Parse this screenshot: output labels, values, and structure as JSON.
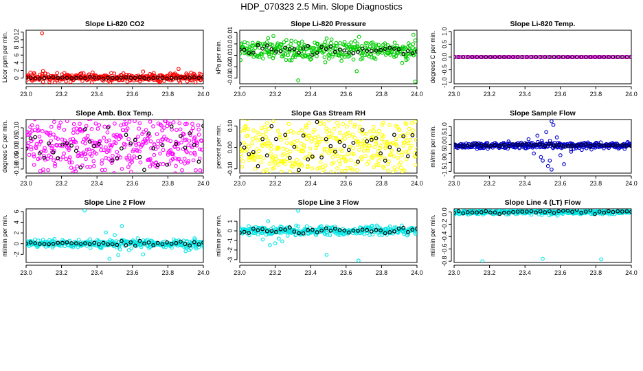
{
  "title": "HDP_070323  2.5 Min. Slope Diagnostics",
  "colors": {
    "background": "#ffffff",
    "summary_points": "#000000"
  },
  "chart_data": [
    {
      "type": "scatter",
      "title": "Slope Li-820 CO2",
      "ylabel": "Licor ppm per min.",
      "color": "#ff0000",
      "xlim": [
        23.0,
        24.0
      ],
      "ylim": [
        -1.5,
        12.5
      ],
      "xticks": [
        23.0,
        23.2,
        23.4,
        23.6,
        23.8,
        24.0
      ],
      "xtick_labels": [
        "23.0",
        "23.2",
        "23.4",
        "23.6",
        "23.8",
        "24.0"
      ],
      "yticks": [
        0,
        2,
        4,
        6,
        8,
        10,
        12
      ],
      "ytick_labels": [
        "0",
        "2",
        "4",
        "6",
        "8",
        "10",
        "12"
      ],
      "raw": {
        "center": 0.2,
        "spread": 0.55,
        "n": 350
      },
      "outliers": [
        [
          23.09,
          11.7
        ],
        [
          23.66,
          1.7
        ],
        [
          23.86,
          2.4
        ],
        [
          23.84,
          1.2
        ],
        [
          23.72,
          1.3
        ],
        [
          23.91,
          0.9
        ]
      ],
      "summary": {
        "center": 0.05,
        "spread": 0.12,
        "n": 40
      }
    },
    {
      "type": "scatter",
      "title": "Slope Li-820 Pressure",
      "ylabel": "kPa per min.",
      "color": "#00cc00",
      "xlim": [
        23.0,
        24.0
      ],
      "ylim": [
        -0.035,
        0.012
      ],
      "xticks": [
        23.0,
        23.2,
        23.4,
        23.6,
        23.8,
        24.0
      ],
      "xtick_labels": [
        "23.0",
        "23.2",
        "23.4",
        "23.6",
        "23.8",
        "24.0"
      ],
      "yticks": [
        0.01,
        0.0,
        -0.01,
        -0.02,
        -0.03
      ],
      "ytick_labels": [
        "0.01",
        "0.0",
        "-0.01",
        "-0.02",
        "-0.03"
      ],
      "raw": {
        "center": -0.0055,
        "spread": 0.004,
        "n": 350
      },
      "outliers": [
        [
          23.33,
          -0.032
        ],
        [
          23.66,
          -0.024
        ],
        [
          23.99,
          -0.033
        ],
        [
          23.98,
          0.008
        ],
        [
          23.16,
          0.005
        ],
        [
          23.19,
          0.007
        ]
      ],
      "summary": {
        "center": -0.0055,
        "spread": 0.002,
        "n": 40
      }
    },
    {
      "type": "scatter",
      "title": "Slope Li-820 Temp.",
      "ylabel": "degrees C per min.",
      "color": "#ff00ff",
      "xlim": [
        23.0,
        24.0
      ],
      "ylim": [
        -1.05,
        1.05
      ],
      "xticks": [
        23.0,
        23.2,
        23.4,
        23.6,
        23.8,
        24.0
      ],
      "xtick_labels": [
        "23.0",
        "23.2",
        "23.4",
        "23.6",
        "23.8",
        "24.0"
      ],
      "yticks": [
        1.0,
        0.5,
        0.0,
        -0.5,
        -1.0
      ],
      "ytick_labels": [
        "1.0",
        "0.5",
        "0.0",
        "-0.5",
        "-1.0"
      ],
      "raw": {
        "center": 0.0,
        "spread": 0.0,
        "n": 120
      },
      "outliers": [],
      "summary": {
        "center": 0.0,
        "spread": 0.0,
        "n": 40
      }
    },
    {
      "type": "scatter",
      "title": "Slope Amb. Box Temp.",
      "ylabel": "degrees C per min.",
      "color": "#ff00ff",
      "xlim": [
        23.0,
        24.0
      ],
      "ylim": [
        -0.12,
        0.14
      ],
      "xticks": [
        23.0,
        23.2,
        23.4,
        23.6,
        23.8,
        24.0
      ],
      "xtick_labels": [
        "23.0",
        "23.2",
        "23.4",
        "23.6",
        "23.8",
        "24.0"
      ],
      "yticks": [
        -0.1,
        -0.05,
        0.0,
        0.05,
        0.1
      ],
      "ytick_labels": [
        "-0.10",
        "-0.05",
        "0.00",
        "0.05",
        "0.10"
      ],
      "raw": {
        "center": 0.01,
        "spread": 0.085,
        "n": 420
      },
      "outliers": [
        [
          23.08,
          -0.11
        ],
        [
          23.7,
          0.13
        ]
      ],
      "summary": {
        "center": 0.01,
        "spread": 0.07,
        "n": 40
      }
    },
    {
      "type": "scatter",
      "title": "Slope Gas Stream RH",
      "ylabel": "percent per min.",
      "color": "#ffff00",
      "xlim": [
        23.0,
        24.0
      ],
      "ylim": [
        -0.12,
        0.13
      ],
      "xticks": [
        23.0,
        23.2,
        23.4,
        23.6,
        23.8,
        24.0
      ],
      "xtick_labels": [
        "23.0",
        "23.2",
        "23.4",
        "23.6",
        "23.8",
        "24.0"
      ],
      "yticks": [
        -0.1,
        0.0,
        0.1
      ],
      "ytick_labels": [
        "-0.10",
        "0.00",
        "0.10"
      ],
      "raw": {
        "center": 0.0,
        "spread": 0.08,
        "n": 420
      },
      "outliers": [
        [
          23.99,
          0.12
        ]
      ],
      "summary": {
        "center": 0.0,
        "spread": 0.055,
        "n": 40
      }
    },
    {
      "type": "scatter",
      "title": "Slope Sample Flow",
      "ylabel": "ml/min per min.",
      "color": "#0000cc",
      "xlim": [
        23.0,
        24.0
      ],
      "ylim": [
        -1.6,
        1.4
      ],
      "xticks": [
        23.0,
        23.2,
        23.4,
        23.6,
        23.8,
        24.0
      ],
      "xtick_labels": [
        "23.0",
        "23.2",
        "23.4",
        "23.6",
        "23.8",
        "24.0"
      ],
      "yticks": [
        -1.5,
        -1.0,
        -0.5,
        0.0,
        0.5,
        1.0
      ],
      "ytick_labels": [
        "-1.5",
        "-1.0",
        "-0.5",
        "0.0",
        "0.5",
        "1.0"
      ],
      "raw": {
        "center": -0.05,
        "spread": 0.09,
        "n": 380
      },
      "outliers": [
        [
          23.55,
          1.3
        ],
        [
          23.56,
          1.1
        ],
        [
          23.52,
          0.7
        ],
        [
          23.47,
          0.5
        ],
        [
          23.5,
          -0.9
        ],
        [
          23.53,
          -1.2
        ],
        [
          23.55,
          -1.4
        ],
        [
          23.62,
          -1.1
        ],
        [
          23.6,
          -0.6
        ],
        [
          23.45,
          -0.5
        ],
        [
          23.66,
          -0.4
        ],
        [
          23.72,
          -0.3
        ],
        [
          23.42,
          0.3
        ],
        [
          23.58,
          0.4
        ],
        [
          23.4,
          -0.2
        ],
        [
          23.49,
          -0.7
        ],
        [
          23.54,
          -0.9
        ]
      ],
      "summary": {
        "center": -0.03,
        "spread": 0.04,
        "n": 40
      }
    },
    {
      "type": "scatter",
      "title": "Slope Line 2 Flow",
      "ylabel": "ml/min per min.",
      "color": "#00e5e5",
      "xlim": [
        23.0,
        24.0
      ],
      "ylim": [
        -3.5,
        6.5
      ],
      "xticks": [
        23.0,
        23.2,
        23.4,
        23.6,
        23.8,
        24.0
      ],
      "xtick_labels": [
        "23.0",
        "23.2",
        "23.4",
        "23.6",
        "23.8",
        "24.0"
      ],
      "yticks": [
        -2,
        0,
        2,
        4,
        6
      ],
      "ytick_labels": [
        "-2",
        "0",
        "2",
        "4",
        "6"
      ],
      "raw": {
        "center": 0.0,
        "spread": 0.35,
        "n": 330
      },
      "outliers": [
        [
          23.33,
          6.2
        ],
        [
          23.54,
          3.3
        ],
        [
          23.45,
          2.1
        ],
        [
          23.5,
          1.6
        ],
        [
          23.52,
          -2.1
        ],
        [
          23.58,
          -1.2
        ],
        [
          23.42,
          -0.8
        ],
        [
          23.66,
          -2.0
        ],
        [
          23.63,
          1.0
        ],
        [
          23.47,
          -2.8
        ],
        [
          23.92,
          -1.2
        ],
        [
          23.95,
          1.0
        ],
        [
          23.9,
          -1.4
        ],
        [
          23.96,
          -0.9
        ]
      ],
      "summary": {
        "center": 0.0,
        "spread": 0.2,
        "n": 40
      }
    },
    {
      "type": "scatter",
      "title": "Slope Line 3 Flow",
      "ylabel": "ml/min per min.",
      "color": "#00e5e5",
      "xlim": [
        23.0,
        24.0
      ],
      "ylim": [
        -3.3,
        2.3
      ],
      "xticks": [
        23.0,
        23.2,
        23.4,
        23.6,
        23.8,
        24.0
      ],
      "xtick_labels": [
        "23.0",
        "23.2",
        "23.4",
        "23.6",
        "23.8",
        "24.0"
      ],
      "yticks": [
        -3,
        -2,
        -1,
        0,
        1
      ],
      "ytick_labels": [
        "-3",
        "-2",
        "-1",
        "0",
        "1"
      ],
      "raw": {
        "center": 0.0,
        "spread": 0.22,
        "n": 330
      },
      "outliers": [
        [
          23.33,
          2.1
        ],
        [
          23.16,
          1.0
        ],
        [
          23.2,
          -1.3
        ],
        [
          23.17,
          -1.5
        ],
        [
          23.22,
          -0.8
        ],
        [
          23.49,
          -2.5
        ],
        [
          23.67,
          -3.1
        ],
        [
          23.13,
          -0.9
        ],
        [
          23.24,
          -1.1
        ]
      ],
      "summary": {
        "center": 0.0,
        "spread": 0.15,
        "n": 40
      }
    },
    {
      "type": "scatter",
      "title": "Slope Line 4 (LT) Flow",
      "ylabel": "ml/min per min.",
      "color": "#00e5e5",
      "xlim": [
        23.0,
        24.0
      ],
      "ylim": [
        -0.82,
        0.05
      ],
      "xticks": [
        23.0,
        23.2,
        23.4,
        23.6,
        23.8,
        24.0
      ],
      "xtick_labels": [
        "23.0",
        "23.2",
        "23.4",
        "23.6",
        "23.8",
        "24.0"
      ],
      "yticks": [
        0.0,
        -0.2,
        -0.4,
        -0.6,
        -0.8
      ],
      "ytick_labels": [
        "0.0",
        "-0.2",
        "-0.4",
        "-0.6",
        "-0.8"
      ],
      "raw": {
        "center": 0.0,
        "spread": 0.02,
        "n": 330
      },
      "outliers": [
        [
          23.16,
          -0.8
        ],
        [
          23.5,
          -0.76
        ],
        [
          23.83,
          -0.77
        ]
      ],
      "summary": {
        "center": 0.0,
        "spread": 0.015,
        "n": 40
      }
    }
  ]
}
